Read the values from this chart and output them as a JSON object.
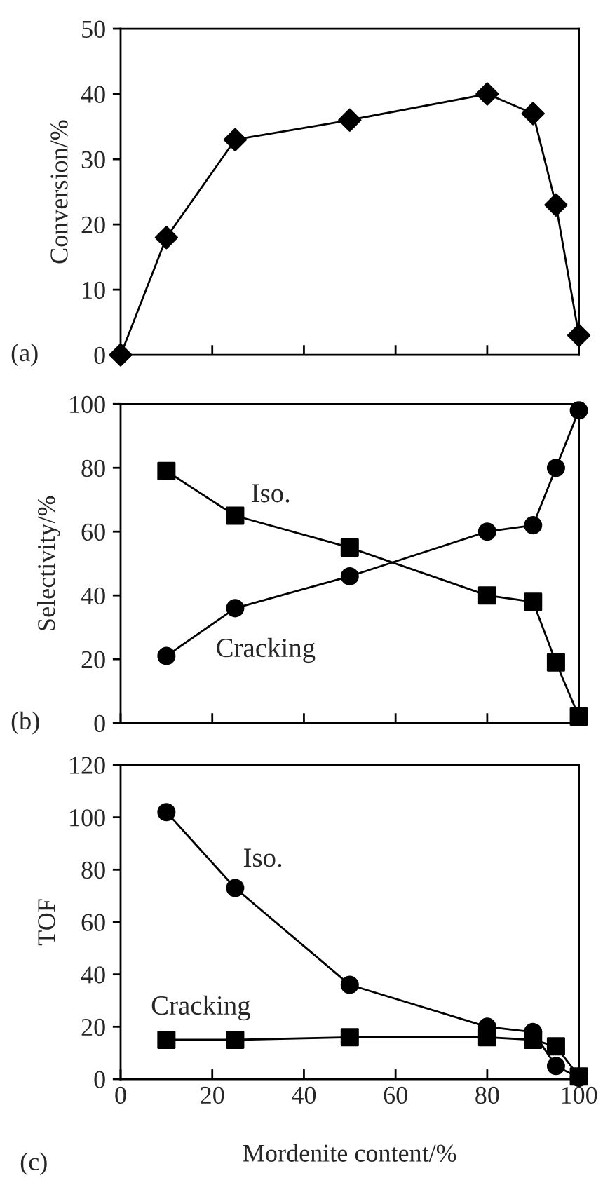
{
  "chart_data": [
    {
      "type": "line",
      "ylabel": "Conversion/%",
      "annotations": [
        "(a)"
      ],
      "x": [
        0,
        10,
        25,
        50,
        80,
        90,
        95,
        100
      ],
      "xlim": [
        0,
        100
      ],
      "xticks": [
        {
          "value": 0,
          "label": null
        },
        {
          "value": 20,
          "label": null
        },
        {
          "value": 40,
          "label": null
        },
        {
          "value": 60,
          "label": null
        },
        {
          "value": 80,
          "label": null
        },
        {
          "value": 100,
          "label": null
        }
      ],
      "ylim": [
        0,
        50
      ],
      "yticks": [
        0,
        10,
        20,
        30,
        40,
        50
      ],
      "tick_labels": "y",
      "grid": false,
      "line_style": "solid",
      "series": [
        {
          "color": "#000000",
          "marker": "diamond",
          "values": [
            0,
            18,
            33,
            36,
            40,
            37,
            23,
            3
          ]
        }
      ]
    },
    {
      "type": "line",
      "ylabel": "Selectivity/%",
      "annotations": [
        "(b)"
      ],
      "x": [
        10,
        25,
        50,
        80,
        90,
        95,
        100
      ],
      "xlim": [
        0,
        100
      ],
      "xticks": [
        {
          "value": 0,
          "label": null
        },
        {
          "value": 20,
          "label": null
        },
        {
          "value": 40,
          "label": null
        },
        {
          "value": 60,
          "label": null
        },
        {
          "value": 80,
          "label": null
        },
        {
          "value": 100,
          "label": null
        }
      ],
      "ylim": [
        0,
        100
      ],
      "yticks": [
        0,
        20,
        40,
        60,
        80,
        100
      ],
      "tick_labels": "y",
      "grid": false,
      "line_style": "solid",
      "series": [
        {
          "name": "Iso.",
          "color": "#000000",
          "marker": "square",
          "values": [
            79,
            65,
            55,
            40,
            38,
            19,
            2
          ]
        },
        {
          "name": "Cracking",
          "color": "#000000",
          "marker": "circle",
          "values": [
            21,
            36,
            46,
            60,
            62,
            80,
            98
          ]
        }
      ]
    },
    {
      "type": "line",
      "xlabel": "Mordenite content/%",
      "ylabel": "TOF",
      "annotations": [
        "(c)"
      ],
      "x": [
        10,
        25,
        50,
        80,
        90,
        95,
        100
      ],
      "xlim": [
        0,
        100
      ],
      "xticks": [
        0,
        20,
        40,
        60,
        80,
        100
      ],
      "ylim": [
        0,
        120
      ],
      "yticks": [
        0,
        20,
        40,
        60,
        80,
        100,
        120
      ],
      "grid": false,
      "line_style": "solid",
      "series": [
        {
          "name": "Iso.",
          "color": "#000000",
          "marker": "circle",
          "values": [
            102,
            73,
            36,
            20,
            18,
            5,
            0.5
          ]
        },
        {
          "name": "Cracking",
          "color": "#000000",
          "marker": "square",
          "values": [
            15,
            15,
            16,
            16,
            15,
            12.5,
            1
          ]
        }
      ]
    }
  ]
}
